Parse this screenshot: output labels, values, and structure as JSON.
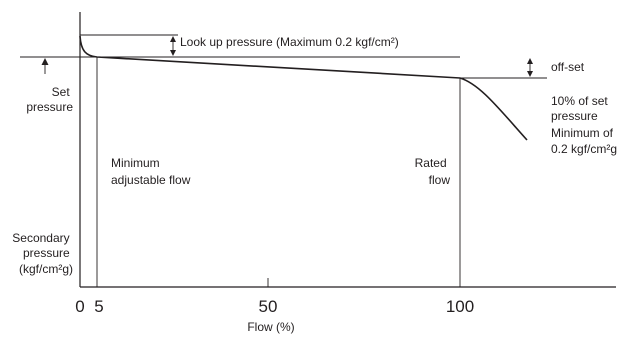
{
  "chart_data": {
    "type": "line",
    "xlabel": "Flow (%)",
    "ylabel_lines": [
      "Secondary",
      "pressure",
      "(kgf/cm²g)"
    ],
    "x_ticks": [
      "0",
      "5",
      "50",
      "100"
    ],
    "set_pressure_lines": [
      "Set",
      "pressure"
    ],
    "look_up_label": "Look up pressure (Maximum 0.2 kgf/cm²)",
    "offset_label": "off-set",
    "offset_note_lines": [
      "10% of set",
      "pressure",
      "Minimum of",
      "0.2 kgf/cm²g"
    ],
    "min_flow_lines": [
      "Minimum",
      "adjustable flow"
    ],
    "rated_flow_lines": [
      "Rated",
      "flow"
    ]
  }
}
